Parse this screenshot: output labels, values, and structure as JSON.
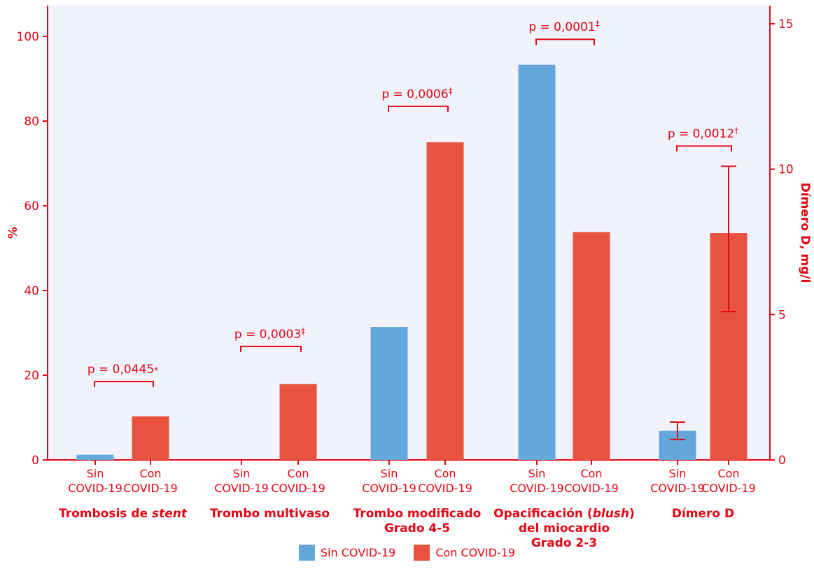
{
  "colors": {
    "sin": "#64a7db",
    "con": "#e8533f",
    "axis": "#e30613",
    "plot_bg": "#f0f3fb"
  },
  "legend": [
    {
      "label": "Sin COVID-19",
      "color": "#64a7db"
    },
    {
      "label": "Con COVID-19",
      "color": "#e8533f"
    }
  ],
  "chart_data": {
    "type": "bar",
    "title": "",
    "ylabel_left": "%",
    "ylabel_right": "Dímero D, mg/l",
    "ylim_left": [
      0,
      100
    ],
    "ylim_right": [
      0,
      15
    ],
    "yticks_left": [
      0,
      20,
      40,
      60,
      80,
      100
    ],
    "yticks_right": [
      0,
      5,
      10,
      15
    ],
    "legend_position": "bottom",
    "grid": false,
    "groups": [
      {
        "label": "Trombosis de stent",
        "label_lines": [
          [
            {
              "t": "Trombosis de ",
              "i": false
            },
            {
              "t": "stent",
              "i": true
            }
          ]
        ],
        "bars": [
          {
            "category": "Sin COVID-19",
            "cat_lines": [
              "Sin",
              "COVID-19"
            ],
            "value": 1.2,
            "axis": "left"
          },
          {
            "category": "Con COVID-19",
            "cat_lines": [
              "Con",
              "COVID-19"
            ],
            "value": 10.3,
            "axis": "left"
          }
        ],
        "pvalue": {
          "text": "p = 0,0445",
          "mark": "*",
          "level": 18.5
        }
      },
      {
        "label": "Trombo multivaso",
        "label_lines": [
          [
            {
              "t": "Trombo multivaso",
              "i": false
            }
          ]
        ],
        "bars": [
          {
            "category": "Sin COVID-19",
            "cat_lines": [
              "Sin",
              "COVID-19"
            ],
            "value": 0,
            "axis": "left"
          },
          {
            "category": "Con COVID-19",
            "cat_lines": [
              "Con",
              "COVID-19"
            ],
            "value": 17.9,
            "axis": "left"
          }
        ],
        "pvalue": {
          "text": "p = 0,0003",
          "mark": "‡",
          "level": 26.8
        }
      },
      {
        "label": "Trombo modificado Grado 4-5",
        "label_lines": [
          [
            {
              "t": "Trombo modificado",
              "i": false
            }
          ],
          [
            {
              "t": "Grado 4-5",
              "i": false
            }
          ]
        ],
        "bars": [
          {
            "category": "Sin COVID-19",
            "cat_lines": [
              "Sin",
              "COVID-19"
            ],
            "value": 31.4,
            "axis": "left"
          },
          {
            "category": "Con COVID-19",
            "cat_lines": [
              "Con",
              "COVID-19"
            ],
            "value": 75,
            "axis": "left"
          }
        ],
        "pvalue": {
          "text": "p = 0,0006",
          "mark": "‡",
          "level": 83.5
        }
      },
      {
        "label": "Opacificación (blush) del miocardio Grado 2-3",
        "label_lines": [
          [
            {
              "t": "Opacificación (",
              "i": false
            },
            {
              "t": "blush",
              "i": true
            },
            {
              "t": ")",
              "i": false
            }
          ],
          [
            {
              "t": "del miocardio",
              "i": false
            }
          ],
          [
            {
              "t": "Grado 2-3",
              "i": false
            }
          ]
        ],
        "bars": [
          {
            "category": "Sin COVID-19",
            "cat_lines": [
              "Sin",
              "COVID-19"
            ],
            "value": 93.3,
            "axis": "left"
          },
          {
            "category": "Con COVID-19",
            "cat_lines": [
              "Con",
              "COVID-19"
            ],
            "value": 53.8,
            "axis": "left"
          }
        ],
        "pvalue": {
          "text": "p = 0,0001",
          "mark": "‡",
          "level": 99.3
        }
      },
      {
        "label": "Dímero D",
        "label_lines": [
          [
            {
              "t": "Dímero D",
              "i": false
            }
          ]
        ],
        "bars": [
          {
            "category": "Sin COVID-19",
            "cat_lines": [
              "Sin",
              "COVID-19"
            ],
            "value": 1.0,
            "axis": "right",
            "error": [
              0.7,
              1.3
            ]
          },
          {
            "category": "Con COVID-19",
            "cat_lines": [
              "Con",
              "COVID-19"
            ],
            "value": 7.8,
            "axis": "right",
            "error": [
              5.1,
              10.1
            ]
          }
        ],
        "pvalue": {
          "text": "p = 0,0012",
          "mark": "†",
          "level": 10.8,
          "axis": "right"
        }
      }
    ]
  }
}
